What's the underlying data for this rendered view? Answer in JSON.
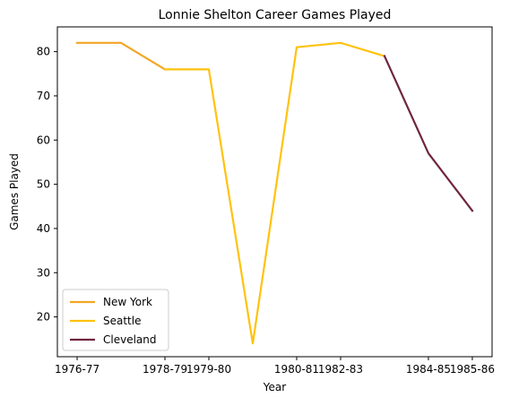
{
  "chart_data": {
    "type": "line",
    "title": "Lonnie Shelton Career Games Played",
    "xlabel": "Year",
    "ylabel": "Games Played",
    "x_ticks": [
      "1976-77",
      "1978-79",
      "1979-80",
      "1980-81",
      "1982-83",
      "1984-85",
      "1985-86"
    ],
    "y_ticks": [
      20,
      30,
      40,
      50,
      60,
      70,
      80
    ],
    "ylim": [
      11,
      85.6
    ],
    "grid": false,
    "legend_position": "lower left",
    "series": [
      {
        "name": "New York",
        "color": "#f5a623",
        "points": [
          [
            0,
            82
          ],
          [
            1,
            82
          ],
          [
            2,
            76
          ]
        ]
      },
      {
        "name": "Seattle",
        "color": "#ffc20e",
        "points": [
          [
            2,
            76
          ],
          [
            3,
            76
          ],
          [
            4,
            14
          ],
          [
            5,
            81
          ],
          [
            6,
            82
          ],
          [
            7,
            79
          ]
        ]
      },
      {
        "name": "Cleveland",
        "color": "#6f263d",
        "points": [
          [
            7,
            79
          ],
          [
            8,
            57
          ],
          [
            9,
            44
          ]
        ]
      }
    ],
    "x_tick_positions": [
      0,
      2,
      3,
      5,
      6,
      8,
      9
    ]
  }
}
